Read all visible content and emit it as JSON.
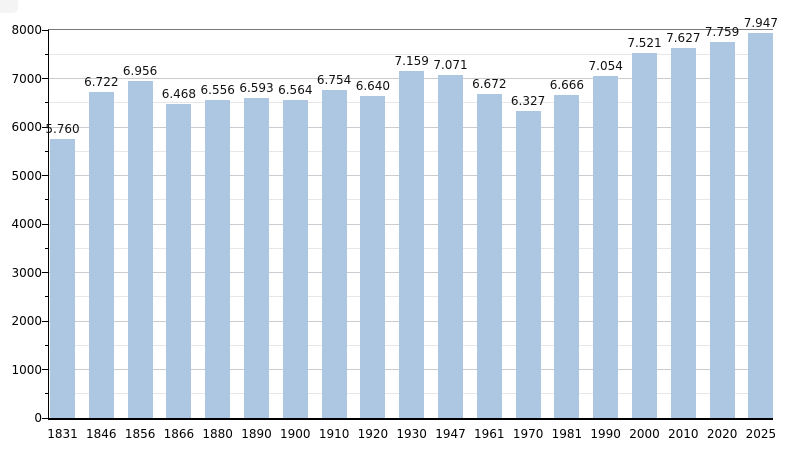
{
  "chart_data": {
    "type": "bar",
    "title": "",
    "xlabel": "",
    "ylabel": "",
    "categories": [
      "1831",
      "1846",
      "1856",
      "1866",
      "1880",
      "1890",
      "1900",
      "1910",
      "1920",
      "1930",
      "1947",
      "1961",
      "1970",
      "1981",
      "1990",
      "2000",
      "2010",
      "2020",
      "2025"
    ],
    "values": [
      5760,
      6722,
      6956,
      6468,
      6556,
      6593,
      6564,
      6754,
      6640,
      7159,
      7071,
      6672,
      6327,
      6666,
      7054,
      7521,
      7627,
      7759,
      7947
    ],
    "value_labels": [
      "5.760",
      "6.722",
      "6.956",
      "6.468",
      "6.556",
      "6.593",
      "6.564",
      "6.754",
      "6.640",
      "7.159",
      "7.071",
      "6.672",
      "6.327",
      "6.666",
      "7.054",
      "7.521",
      "7.627",
      "7.759",
      "7.947"
    ],
    "ylim": [
      0,
      8000
    ],
    "ytick_major_step": 1000,
    "ytick_minor_step": 500,
    "ytick_labels": [
      "0",
      "1000",
      "2000",
      "3000",
      "4000",
      "5000",
      "6000",
      "7000",
      "8000"
    ],
    "grid": "horizontal",
    "legend": "none",
    "bar_color": "#adc6e2",
    "major_grid_color": "#c9cdd1",
    "minor_grid_color": "#e4e6e8",
    "axis_color": "#000000",
    "top_frame_color": "#787878"
  }
}
